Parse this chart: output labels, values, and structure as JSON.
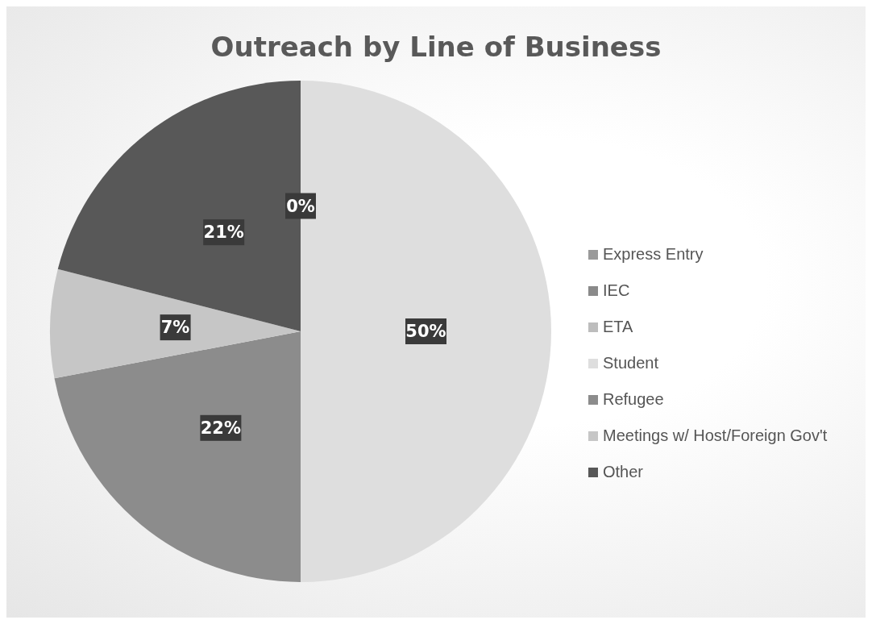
{
  "chart_data": {
    "type": "pie",
    "title": "Outreach by Line of Business",
    "categories": [
      "Express Entry",
      "IEC",
      "ETA",
      "Student",
      "Refugee",
      "Meetings w/ Host/Foreign Gov't",
      "Other"
    ],
    "values": [
      0,
      0,
      0,
      50,
      22,
      7,
      21
    ],
    "value_labels": [
      "0%",
      null,
      null,
      "50%",
      "22%",
      "7%",
      "21%"
    ],
    "colors": [
      "#9a9a9a",
      "#8a8a8a",
      "#bdbdbd",
      "#dedede",
      "#8c8c8c",
      "#c6c6c6",
      "#585858"
    ],
    "legend": "right"
  }
}
